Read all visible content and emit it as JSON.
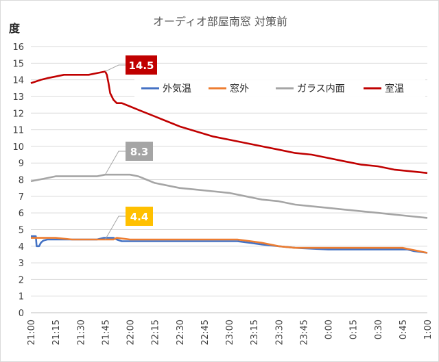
{
  "chart_data": {
    "type": "line",
    "title": "オーディオ部屋南窓 対策前",
    "ylabel": "度",
    "xlabel": "",
    "ylim": [
      0,
      16
    ],
    "y_ticks": [
      "0",
      "1",
      "2",
      "3",
      "4",
      "5",
      "6",
      "7",
      "8",
      "9",
      "10",
      "11",
      "12",
      "13",
      "14",
      "15",
      "16"
    ],
    "x_ticks": [
      "21:00",
      "21:15",
      "21:30",
      "21:45",
      "22:00",
      "22:15",
      "22:30",
      "22:45",
      "23:00",
      "23:15",
      "23:30",
      "23:45",
      "0:00",
      "0:15",
      "0:30",
      "0:45",
      "1:00"
    ],
    "grid": "horizontal",
    "legend_position": "top-right",
    "series": [
      {
        "name": "外気温",
        "color": "#4472c4",
        "x": [
          0,
          3,
          3.5,
          5,
          6,
          7,
          8,
          10,
          12,
          15,
          20,
          30,
          40,
          44,
          45,
          48,
          50,
          52,
          55,
          60,
          75,
          90,
          110,
          125,
          133,
          140,
          150,
          160,
          180,
          200,
          215,
          225,
          228,
          232,
          240
        ],
        "values": [
          4.6,
          4.6,
          4.0,
          4.0,
          4.2,
          4.3,
          4.35,
          4.4,
          4.4,
          4.4,
          4.4,
          4.4,
          4.4,
          4.5,
          4.5,
          4.5,
          4.5,
          4.4,
          4.3,
          4.3,
          4.3,
          4.3,
          4.3,
          4.3,
          4.2,
          4.1,
          4.0,
          3.9,
          3.8,
          3.8,
          3.8,
          3.8,
          3.8,
          3.7,
          3.6
        ]
      },
      {
        "name": "窓外",
        "color": "#ed7d31",
        "x": [
          0,
          15,
          25,
          40,
          45,
          50,
          52,
          60,
          75,
          90,
          110,
          125,
          133,
          140,
          150,
          160,
          180,
          200,
          215,
          225,
          230,
          235,
          240
        ],
        "values": [
          4.5,
          4.5,
          4.4,
          4.4,
          4.4,
          4.4,
          4.5,
          4.4,
          4.4,
          4.4,
          4.4,
          4.4,
          4.3,
          4.2,
          4.0,
          3.9,
          3.9,
          3.9,
          3.9,
          3.9,
          3.8,
          3.7,
          3.6
        ]
      },
      {
        "name": "ガラス内面",
        "color": "#a5a5a5",
        "x": [
          0,
          5,
          10,
          15,
          20,
          25,
          30,
          35,
          40,
          45,
          50,
          55,
          60,
          65,
          70,
          75,
          80,
          90,
          100,
          110,
          120,
          130,
          140,
          150,
          160,
          170,
          180,
          190,
          200,
          210,
          220,
          230,
          240
        ],
        "values": [
          7.9,
          8.0,
          8.1,
          8.2,
          8.2,
          8.2,
          8.2,
          8.2,
          8.2,
          8.3,
          8.3,
          8.3,
          8.3,
          8.2,
          8.0,
          7.8,
          7.7,
          7.5,
          7.4,
          7.3,
          7.2,
          7.0,
          6.8,
          6.7,
          6.5,
          6.4,
          6.3,
          6.2,
          6.1,
          6.0,
          5.9,
          5.8,
          5.7
        ]
      },
      {
        "name": "室温",
        "color": "#c00000",
        "x": [
          0,
          3,
          6,
          10,
          15,
          20,
          25,
          30,
          35,
          40,
          45,
          46,
          47,
          48,
          50,
          52,
          55,
          60,
          65,
          70,
          75,
          80,
          90,
          100,
          110,
          120,
          130,
          140,
          150,
          160,
          170,
          180,
          190,
          200,
          210,
          220,
          230,
          240
        ],
        "values": [
          13.8,
          13.9,
          14.0,
          14.1,
          14.2,
          14.3,
          14.3,
          14.3,
          14.3,
          14.4,
          14.5,
          14.3,
          13.8,
          13.2,
          12.8,
          12.6,
          12.6,
          12.4,
          12.2,
          12.0,
          11.8,
          11.6,
          11.2,
          10.9,
          10.6,
          10.4,
          10.2,
          10.0,
          9.8,
          9.6,
          9.5,
          9.3,
          9.1,
          8.9,
          8.8,
          8.6,
          8.5,
          8.4
        ]
      }
    ],
    "callouts": [
      {
        "label": "14.5",
        "series": "室温",
        "x": 45,
        "value": 14.5,
        "color": "#c00000"
      },
      {
        "label": "8.3",
        "series": "ガラス内面",
        "x": 45,
        "value": 8.3,
        "color": "#a5a5a5"
      },
      {
        "label": "4.4",
        "series": "窓外",
        "x": 45,
        "value": 4.4,
        "color": "#ffc000"
      }
    ]
  }
}
